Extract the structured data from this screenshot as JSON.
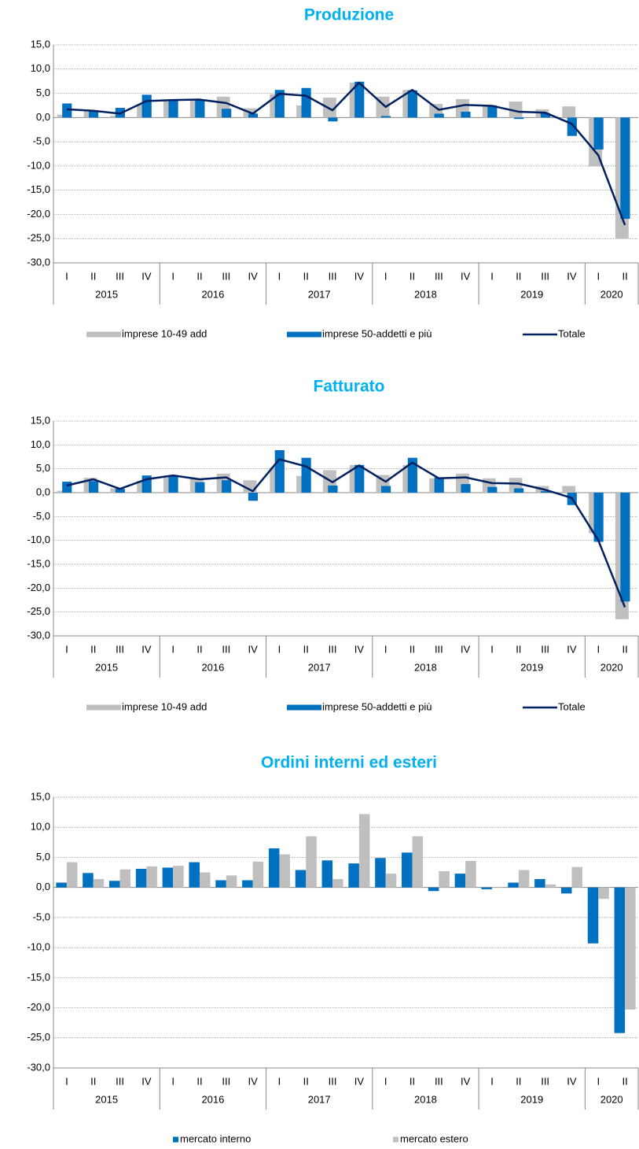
{
  "chart_data": [
    {
      "type": "bar",
      "title": "Produzione",
      "bar_mode": "overlap",
      "legend": "bottom",
      "grid": true,
      "categories": [
        "I",
        "II",
        "III",
        "IV",
        "I",
        "II",
        "III",
        "IV",
        "I",
        "II",
        "III",
        "IV",
        "I",
        "II",
        "III",
        "IV",
        "I",
        "II",
        "III",
        "IV",
        "I",
        "II"
      ],
      "groups": [
        "2015",
        "2016",
        "2017",
        "2018",
        "2019",
        "2020"
      ],
      "ylim": [
        -30,
        15
      ],
      "yticks": [
        {
          "value": -30,
          "label": "-30,0"
        },
        {
          "value": -25,
          "label": "-25,0"
        },
        {
          "value": -20,
          "label": "-20,0"
        },
        {
          "value": -15,
          "label": "-15,0"
        },
        {
          "value": -10,
          "label": "-10,0"
        },
        {
          "value": -5,
          "label": "-5,0"
        },
        {
          "value": 0,
          "label": "0,0"
        },
        {
          "value": 5,
          "label": "5,0"
        },
        {
          "value": 10,
          "label": "10,0"
        },
        {
          "value": 15,
          "label": "15,0"
        }
      ],
      "series": [
        {
          "name": "imprese 10-49 add",
          "type": "bar",
          "color": "#bfbfbf",
          "values": [
            0.6,
            1.4,
            0.4,
            2.7,
            3.6,
            3.6,
            4.3,
            1.9,
            4.8,
            2.5,
            4.1,
            7.2,
            4.3,
            5.7,
            2.8,
            3.8,
            2.6,
            3.3,
            1.7,
            2.3,
            -10.1,
            -25.0
          ]
        },
        {
          "name": "imprese 50-addetti e più",
          "type": "bar",
          "color": "#0070c0",
          "values": [
            2.9,
            1.3,
            2.0,
            4.7,
            3.6,
            3.6,
            1.8,
            0.8,
            5.7,
            6.1,
            -0.8,
            7.4,
            0.3,
            5.6,
            0.8,
            1.2,
            2.5,
            -0.3,
            0.9,
            -3.8,
            -6.6,
            -20.9
          ]
        },
        {
          "name": "Totale",
          "type": "line",
          "color": "#002060",
          "values": [
            1.7,
            1.4,
            0.8,
            3.4,
            3.6,
            3.7,
            3.0,
            0.8,
            4.9,
            4.5,
            1.5,
            7.2,
            2.2,
            5.7,
            1.6,
            2.6,
            2.4,
            1.2,
            1.0,
            -1.3,
            -7.8,
            -22.2
          ]
        }
      ]
    },
    {
      "type": "bar",
      "title": "Fatturato",
      "bar_mode": "overlap",
      "legend": "bottom",
      "grid": true,
      "categories": [
        "I",
        "II",
        "III",
        "IV",
        "I",
        "II",
        "III",
        "IV",
        "I",
        "II",
        "III",
        "IV",
        "I",
        "II",
        "III",
        "IV",
        "I",
        "II",
        "III",
        "IV",
        "I",
        "II"
      ],
      "groups": [
        "2015",
        "2016",
        "2017",
        "2018",
        "2019",
        "2020"
      ],
      "ylim": [
        -30,
        15
      ],
      "yticks": [
        {
          "value": -30,
          "label": "-30,0"
        },
        {
          "value": -25,
          "label": "-25,0"
        },
        {
          "value": -20,
          "label": "-20,0"
        },
        {
          "value": -15,
          "label": "-15,0"
        },
        {
          "value": -10,
          "label": "-10,0"
        },
        {
          "value": -5,
          "label": "-5,0"
        },
        {
          "value": 0,
          "label": "0,0"
        },
        {
          "value": 5,
          "label": "5,0"
        },
        {
          "value": 10,
          "label": "10,0"
        },
        {
          "value": 15,
          "label": "15,0"
        }
      ],
      "series": [
        {
          "name": "imprese 10-49 add",
          "type": "bar",
          "color": "#bfbfbf",
          "values": [
            0.4,
            3.1,
            0.9,
            2.5,
            3.6,
            3.0,
            4.0,
            2.6,
            5.3,
            3.5,
            4.7,
            5.8,
            3.7,
            5.8,
            3.0,
            4.0,
            3.0,
            3.1,
            1.4,
            1.4,
            -8.5,
            -26.5
          ]
        },
        {
          "name": "imprese 50-addetti e più",
          "type": "bar",
          "color": "#0070c0",
          "values": [
            2.3,
            2.4,
            0.8,
            3.6,
            3.6,
            2.2,
            2.6,
            -1.7,
            8.9,
            7.3,
            1.5,
            5.8,
            1.4,
            7.3,
            3.2,
            1.8,
            1.2,
            0.9,
            0.3,
            -2.6,
            -10.3,
            -22.8
          ]
        },
        {
          "name": "Totale",
          "type": "line",
          "color": "#002060",
          "values": [
            1.5,
            2.8,
            0.8,
            2.8,
            3.6,
            2.8,
            3.2,
            0.3,
            7.0,
            5.5,
            2.2,
            5.7,
            2.3,
            6.3,
            3.0,
            3.2,
            2.0,
            1.9,
            0.6,
            -1.1,
            -10.0,
            -24.0
          ]
        }
      ]
    },
    {
      "type": "bar",
      "title": "Ordini interni ed esteri",
      "bar_mode": "grouped",
      "legend": "bottom",
      "grid": true,
      "categories": [
        "I",
        "II",
        "III",
        "IV",
        "I",
        "II",
        "III",
        "IV",
        "I",
        "II",
        "III",
        "IV",
        "I",
        "II",
        "III",
        "IV",
        "I",
        "II",
        "III",
        "IV",
        "I",
        "II"
      ],
      "groups": [
        "2015",
        "2016",
        "2017",
        "2018",
        "2019",
        "2020"
      ],
      "ylim": [
        -30,
        15
      ],
      "yticks": [
        {
          "value": -30,
          "label": "-30,0"
        },
        {
          "value": -25,
          "label": "-25,0"
        },
        {
          "value": -20,
          "label": "-20,0"
        },
        {
          "value": -15,
          "label": "-15,0"
        },
        {
          "value": -10,
          "label": "-10,0"
        },
        {
          "value": -5,
          "label": "-5,0"
        },
        {
          "value": 0,
          "label": "0,0"
        },
        {
          "value": 5,
          "label": "5,0"
        },
        {
          "value": 10,
          "label": "10,0"
        },
        {
          "value": 15,
          "label": "15,0"
        }
      ],
      "series": [
        {
          "name": "mercato interno",
          "type": "bar",
          "color": "#0070c0",
          "values": [
            0.8,
            2.4,
            1.1,
            3.1,
            3.3,
            4.2,
            1.2,
            1.2,
            6.5,
            2.9,
            4.5,
            4.0,
            4.9,
            5.8,
            -0.6,
            2.3,
            -0.3,
            0.8,
            1.4,
            -1.0,
            -9.3,
            -24.2
          ]
        },
        {
          "name": "mercato estero",
          "type": "bar",
          "color": "#bfbfbf",
          "values": [
            4.2,
            1.4,
            3.0,
            3.5,
            3.6,
            2.5,
            2.0,
            4.3,
            5.5,
            8.5,
            1.4,
            12.2,
            2.3,
            8.5,
            2.7,
            4.4,
            0.1,
            2.9,
            0.5,
            3.4,
            -1.9,
            -20.3
          ]
        }
      ]
    }
  ]
}
